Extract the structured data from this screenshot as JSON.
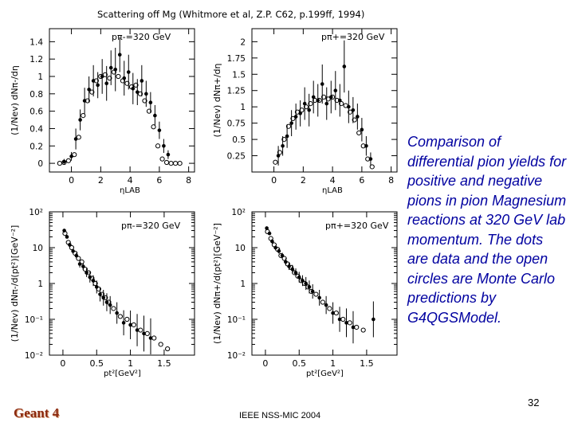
{
  "figure_title": "Scattering off Mg (Whitmore et al, Z.P. C62, p.199ff, 1994)",
  "caption": "Comparison of differential pion yields for positive and negative pions in pion Magnesium reactions at 320 GeV lab momentum. The dots are data and the open circles are Monte Carlo predictions by G4QGSModel.",
  "page_number": "32",
  "footer": "IEEE NSS-MIC 2004",
  "logo": "Geant 4",
  "colors": {
    "caption": "#0000a0",
    "logo": "#8b2a10",
    "axes": "#000000"
  },
  "chart_data": [
    {
      "id": "top-left",
      "type": "scatter",
      "label": "pπ-=320 GeV",
      "ylabel": "(1/Nev) dNπ-/dη",
      "xlabel": "ηLAB",
      "xlim": [
        -1.5,
        8.4
      ],
      "ylim": [
        -0.1,
        1.55
      ],
      "yscale": "linear",
      "xticks": [
        "0",
        "2",
        "4",
        "6",
        "8"
      ],
      "xtick_values": [
        0,
        2,
        4,
        6,
        8
      ],
      "yticks": [
        "0",
        "0.2",
        "0.4",
        "0.6",
        "0.8",
        "1",
        "1.2",
        "1.4"
      ],
      "ytick_values": [
        0,
        0.2,
        0.4,
        0.6,
        0.8,
        1.0,
        1.2,
        1.4
      ],
      "data": {
        "x": [
          -0.5,
          0,
          0.3,
          0.6,
          0.9,
          1.2,
          1.5,
          1.8,
          2.1,
          2.4,
          2.7,
          3.0,
          3.3,
          3.6,
          3.9,
          4.2,
          4.5,
          4.8,
          5.1,
          5.4,
          5.7,
          6.0,
          6.3,
          6.6
        ],
        "y": [
          0.02,
          0.08,
          0.28,
          0.5,
          0.72,
          0.85,
          0.95,
          0.9,
          1.0,
          0.92,
          1.1,
          1.08,
          1.25,
          0.98,
          1.05,
          0.86,
          0.82,
          0.95,
          0.8,
          0.7,
          0.55,
          0.38,
          0.2,
          0.1
        ],
        "err": [
          0.03,
          0.05,
          0.12,
          0.12,
          0.15,
          0.15,
          0.18,
          0.15,
          0.2,
          0.2,
          0.2,
          0.25,
          0.2,
          0.2,
          0.2,
          0.18,
          0.15,
          0.18,
          0.15,
          0.12,
          0.12,
          0.1,
          0.08,
          0.05
        ]
      },
      "mc": {
        "x": [
          -0.8,
          -0.5,
          -0.2,
          0.2,
          0.5,
          0.8,
          1.1,
          1.4,
          1.7,
          2.0,
          2.3,
          2.6,
          2.9,
          3.2,
          3.5,
          3.8,
          4.1,
          4.4,
          4.7,
          5.0,
          5.3,
          5.6,
          5.9,
          6.2,
          6.5,
          6.8,
          7.1,
          7.4
        ],
        "y": [
          0.0,
          0.01,
          0.03,
          0.1,
          0.3,
          0.55,
          0.72,
          0.82,
          0.95,
          1.0,
          1.02,
          0.98,
          1.05,
          1.0,
          0.95,
          0.92,
          0.88,
          0.9,
          0.8,
          0.72,
          0.6,
          0.42,
          0.2,
          0.05,
          0.01,
          0.0,
          0.0,
          0.0
        ]
      }
    },
    {
      "id": "top-right",
      "type": "scatter",
      "label": "pπ+=320 GeV",
      "ylabel": "(1/Nev) dNπ+/dη",
      "xlabel": "ηLAB",
      "xlim": [
        -1.5,
        8.4
      ],
      "ylim": [
        0,
        2.2
      ],
      "yscale": "linear",
      "xticks": [
        "0",
        "2",
        "4",
        "6",
        "8"
      ],
      "xtick_values": [
        0,
        2,
        4,
        6,
        8
      ],
      "yticks": [
        "0.25",
        "0.5",
        "0.75",
        "1",
        "1.25",
        "1.5",
        "1.75",
        "2"
      ],
      "ytick_values": [
        0.25,
        0.5,
        0.75,
        1.0,
        1.25,
        1.5,
        1.75,
        2.0
      ],
      "data": {
        "x": [
          0.3,
          0.6,
          0.9,
          1.2,
          1.5,
          1.8,
          2.1,
          2.4,
          2.7,
          3.0,
          3.3,
          3.6,
          3.9,
          4.2,
          4.5,
          4.8,
          5.1,
          5.4,
          5.7,
          6.0,
          6.3,
          6.6
        ],
        "y": [
          0.25,
          0.4,
          0.55,
          0.75,
          0.85,
          0.9,
          1.05,
          0.95,
          1.15,
          1.1,
          1.35,
          1.05,
          1.15,
          1.25,
          1.1,
          1.62,
          1.0,
          0.95,
          0.85,
          0.65,
          0.4,
          0.2
        ],
        "err": [
          0.15,
          0.15,
          0.18,
          0.2,
          0.2,
          0.2,
          0.25,
          0.25,
          0.25,
          0.25,
          0.3,
          0.25,
          0.25,
          0.3,
          0.25,
          0.4,
          0.25,
          0.2,
          0.2,
          0.18,
          0.15,
          0.1
        ]
      },
      "mc": {
        "x": [
          0.1,
          0.4,
          0.7,
          1.0,
          1.3,
          1.6,
          1.9,
          2.2,
          2.5,
          2.8,
          3.1,
          3.4,
          3.7,
          4.0,
          4.3,
          4.6,
          4.9,
          5.2,
          5.5,
          5.8,
          6.1,
          6.4,
          6.7
        ],
        "y": [
          0.15,
          0.3,
          0.5,
          0.7,
          0.82,
          0.92,
          0.95,
          1.0,
          1.05,
          1.1,
          1.1,
          1.15,
          1.12,
          1.15,
          1.1,
          1.05,
          1.02,
          0.92,
          0.8,
          0.6,
          0.4,
          0.2,
          0.08
        ]
      }
    },
    {
      "id": "bottom-left",
      "type": "scatter",
      "label": "pπ-=320 GeV",
      "ylabel": "(1/Nev) dNπ-/d(pt²)[GeV⁻²]",
      "xlabel": "pt²[GeV²]",
      "xlim": [
        -0.2,
        1.95
      ],
      "ylim_log10": [
        -2,
        2
      ],
      "yscale": "log",
      "xticks": [
        "0",
        "0.5",
        "1",
        "1.5"
      ],
      "xtick_values": [
        0,
        0.5,
        1.0,
        1.5
      ],
      "yticks": [
        "10⁻²",
        "10⁻¹",
        "1",
        "10",
        "10²"
      ],
      "ytick_log10": [
        -2,
        -1,
        0,
        1,
        2
      ],
      "data": {
        "x": [
          0.02,
          0.06,
          0.1,
          0.15,
          0.2,
          0.25,
          0.3,
          0.35,
          0.4,
          0.45,
          0.5,
          0.55,
          0.6,
          0.65,
          0.7,
          0.8,
          0.9,
          1.0,
          1.1,
          1.2,
          1.3
        ],
        "y": [
          30,
          20,
          12,
          8,
          6,
          3.5,
          3,
          2,
          1.5,
          1.2,
          0.8,
          0.5,
          0.4,
          0.3,
          0.25,
          0.15,
          0.08,
          0.07,
          0.05,
          0.04,
          0.03
        ],
        "err_log10": [
          0.05,
          0.05,
          0.06,
          0.06,
          0.08,
          0.1,
          0.1,
          0.12,
          0.15,
          0.15,
          0.18,
          0.2,
          0.22,
          0.25,
          0.25,
          0.3,
          0.35,
          0.4,
          0.45,
          0.5,
          0.55
        ]
      },
      "mc": {
        "x": [
          0.03,
          0.08,
          0.13,
          0.18,
          0.23,
          0.28,
          0.33,
          0.38,
          0.43,
          0.48,
          0.53,
          0.58,
          0.63,
          0.68,
          0.75,
          0.85,
          0.95,
          1.05,
          1.15,
          1.25,
          1.35,
          1.45,
          1.55
        ],
        "y": [
          25,
          14,
          10,
          7,
          5,
          4,
          2.5,
          2,
          1.4,
          1.0,
          0.7,
          0.5,
          0.4,
          0.3,
          0.2,
          0.12,
          0.1,
          0.07,
          0.05,
          0.04,
          0.03,
          0.02,
          0.015
        ]
      }
    },
    {
      "id": "bottom-right",
      "type": "scatter",
      "label": "pπ+=320 GeV",
      "ylabel": "(1/Nev) dNπ+/d(pt²)[GeV⁻²]",
      "xlabel": "pt²[GeV²]",
      "xlim": [
        -0.2,
        1.95
      ],
      "ylim_log10": [
        -2,
        2
      ],
      "yscale": "log",
      "xticks": [
        "0",
        "0.5",
        "1",
        "1.5"
      ],
      "xtick_values": [
        0,
        0.5,
        1.0,
        1.5
      ],
      "yticks": [
        "10⁻²",
        "10⁻¹",
        "1",
        "10",
        "10²"
      ],
      "ytick_log10": [
        -2,
        -1,
        0,
        1,
        2
      ],
      "data": {
        "x": [
          0.02,
          0.06,
          0.1,
          0.15,
          0.2,
          0.25,
          0.3,
          0.35,
          0.4,
          0.45,
          0.5,
          0.55,
          0.6,
          0.65,
          0.7,
          0.8,
          0.9,
          1.0,
          1.1,
          1.2,
          1.3,
          1.6
        ],
        "y": [
          35,
          25,
          15,
          10,
          8,
          6,
          4,
          3,
          2.5,
          2,
          1.5,
          1.2,
          1,
          0.8,
          0.6,
          0.4,
          0.25,
          0.15,
          0.1,
          0.08,
          0.06,
          0.1
        ],
        "err_log10": [
          0.05,
          0.05,
          0.06,
          0.06,
          0.07,
          0.08,
          0.1,
          0.1,
          0.12,
          0.12,
          0.15,
          0.15,
          0.18,
          0.18,
          0.2,
          0.22,
          0.25,
          0.3,
          0.35,
          0.4,
          0.45,
          0.5
        ]
      },
      "mc": {
        "x": [
          0.03,
          0.08,
          0.13,
          0.18,
          0.23,
          0.28,
          0.33,
          0.38,
          0.43,
          0.48,
          0.53,
          0.58,
          0.63,
          0.68,
          0.75,
          0.85,
          0.95,
          1.05,
          1.15,
          1.25,
          1.35,
          1.45
        ],
        "y": [
          28,
          18,
          12,
          9,
          6,
          5,
          3.5,
          2.8,
          2,
          1.6,
          1.2,
          1,
          0.8,
          0.6,
          0.5,
          0.3,
          0.2,
          0.15,
          0.1,
          0.08,
          0.06,
          0.05
        ]
      }
    }
  ]
}
